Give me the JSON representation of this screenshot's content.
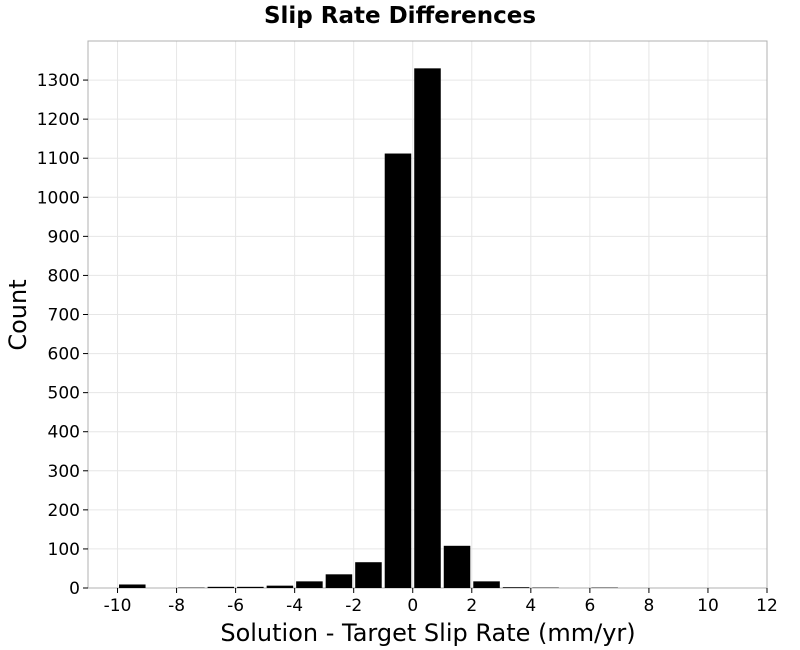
{
  "chart_data": {
    "type": "bar",
    "title": "Slip Rate Differences",
    "xlabel": "Solution - Target Slip Rate (mm/yr)",
    "ylabel": "Count",
    "xlim": [
      -11,
      12
    ],
    "ylim": [
      0,
      1400
    ],
    "x_ticks": [
      -10,
      -8,
      -6,
      -4,
      -2,
      0,
      2,
      4,
      6,
      8,
      10,
      12
    ],
    "y_ticks": [
      0,
      100,
      200,
      300,
      400,
      500,
      600,
      700,
      800,
      900,
      1000,
      1100,
      1200,
      1300
    ],
    "bin_width": 1,
    "bins": [
      {
        "start": -10,
        "end": -9,
        "count": 9
      },
      {
        "start": -9,
        "end": -8,
        "count": 0
      },
      {
        "start": -8,
        "end": -7,
        "count": 1
      },
      {
        "start": -7,
        "end": -6,
        "count": 3
      },
      {
        "start": -6,
        "end": -5,
        "count": 3
      },
      {
        "start": -5,
        "end": -4,
        "count": 6
      },
      {
        "start": -4,
        "end": -3,
        "count": 17
      },
      {
        "start": -3,
        "end": -2,
        "count": 35
      },
      {
        "start": -2,
        "end": -1,
        "count": 66
      },
      {
        "start": -1,
        "end": 0,
        "count": 1112
      },
      {
        "start": 0,
        "end": 1,
        "count": 1330
      },
      {
        "start": 1,
        "end": 2,
        "count": 108
      },
      {
        "start": 2,
        "end": 3,
        "count": 17
      },
      {
        "start": 3,
        "end": 4,
        "count": 2
      },
      {
        "start": 4,
        "end": 5,
        "count": 1
      },
      {
        "start": 5,
        "end": 6,
        "count": 0
      },
      {
        "start": 6,
        "end": 7,
        "count": 1
      }
    ],
    "bar_color": "#000000",
    "grid": true,
    "legend": "none"
  }
}
